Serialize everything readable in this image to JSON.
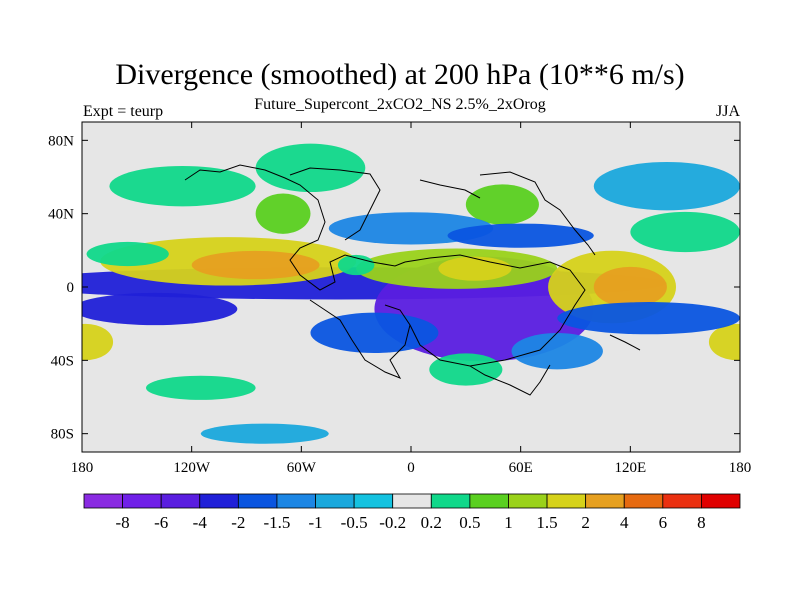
{
  "title": "Divergence (smoothed) at 200 hPa (10**6 m/s)",
  "subtitle": "Future_Supercont_2xCO2_NS 2.5%_2xOrog",
  "left_label": "Expt = teurp",
  "right_label": "JJA",
  "chart_data": {
    "type": "heatmap",
    "title": "Divergence (smoothed) at 200 hPa (10**6 m/s)",
    "subtitle": "Future_Supercont_2xCO2_NS 2.5%_2xOrog",
    "xlim": [
      -180,
      180
    ],
    "ylim": [
      -90,
      90
    ],
    "x_ticks": [
      {
        "value": -180,
        "label": "180"
      },
      {
        "value": -120,
        "label": "120W"
      },
      {
        "value": -60,
        "label": "60W"
      },
      {
        "value": 0,
        "label": "0"
      },
      {
        "value": 60,
        "label": "60E"
      },
      {
        "value": 120,
        "label": "120E"
      },
      {
        "value": 180,
        "label": "180"
      }
    ],
    "y_ticks": [
      {
        "value": 80,
        "label": "80N"
      },
      {
        "value": 40,
        "label": "40N"
      },
      {
        "value": 0,
        "label": "0"
      },
      {
        "value": -40,
        "label": "40S"
      },
      {
        "value": -80,
        "label": "80S"
      }
    ],
    "contour_levels": [
      -8,
      -6,
      -4,
      -2,
      -1.5,
      -1,
      -0.5,
      -0.2,
      0.2,
      0.5,
      1,
      1.5,
      2,
      4,
      6,
      8
    ],
    "colorbar_labels": [
      "-8",
      "-6",
      "-4",
      "-2",
      "-1.5",
      "-1",
      "-0.5",
      "-0.2",
      "0.2",
      "0.5",
      "1",
      "1.5",
      "2",
      "4",
      "6",
      "8"
    ],
    "colors": [
      "#8a2be2",
      "#7020e8",
      "#5a1ee0",
      "#2020d8",
      "#0a55e0",
      "#1c86e4",
      "#1aa8dc",
      "#14c2e0",
      "#e6e6e6",
      "#10d88a",
      "#5ad020",
      "#9ad21a",
      "#d6d21a",
      "#e6a020",
      "#e66a10",
      "#ea3010",
      "#e00000"
    ],
    "missing_color": "#ffffff",
    "features": [
      {
        "lon": -40,
        "lat": 2,
        "w": 360,
        "h": 8,
        "level": -3
      },
      {
        "lon": 40,
        "lat": -12,
        "w": 120,
        "h": 26,
        "level": -4
      },
      {
        "lon": -20,
        "lat": -25,
        "w": 70,
        "h": 10,
        "level": -1.5
      },
      {
        "lon": -100,
        "lat": 14,
        "w": 140,
        "h": 12,
        "level": 2
      },
      {
        "lon": -85,
        "lat": 12,
        "w": 70,
        "h": 7,
        "level": 4
      },
      {
        "lon": -155,
        "lat": 18,
        "w": 45,
        "h": 6,
        "level": 0.5
      },
      {
        "lon": 25,
        "lat": 10,
        "w": 110,
        "h": 10,
        "level": 1.5
      },
      {
        "lon": 35,
        "lat": 10,
        "w": 40,
        "h": 6,
        "level": 2
      },
      {
        "lon": 110,
        "lat": 0,
        "w": 70,
        "h": 18,
        "level": 2
      },
      {
        "lon": 120,
        "lat": 0,
        "w": 40,
        "h": 10,
        "level": 4
      },
      {
        "lon": -178,
        "lat": -30,
        "w": 30,
        "h": 9,
        "level": 2
      },
      {
        "lon": 178,
        "lat": -30,
        "w": 30,
        "h": 9,
        "level": 2
      },
      {
        "lon": -140,
        "lat": -12,
        "w": 90,
        "h": 8,
        "level": -2
      },
      {
        "lon": 130,
        "lat": -17,
        "w": 100,
        "h": 8,
        "level": -1.5
      },
      {
        "lon": 30,
        "lat": -45,
        "w": 40,
        "h": 8,
        "level": 0.5
      },
      {
        "lon": -125,
        "lat": 55,
        "w": 80,
        "h": 10,
        "level": 0.5
      },
      {
        "lon": -55,
        "lat": 65,
        "w": 60,
        "h": 12,
        "level": 0.5
      },
      {
        "lon": -70,
        "lat": 40,
        "w": 30,
        "h": 10,
        "level": 1
      },
      {
        "lon": 50,
        "lat": 45,
        "w": 40,
        "h": 10,
        "level": 1
      },
      {
        "lon": 0,
        "lat": 32,
        "w": 90,
        "h": 8,
        "level": -1
      },
      {
        "lon": 60,
        "lat": 28,
        "w": 80,
        "h": 6,
        "level": -1.5
      },
      {
        "lon": 140,
        "lat": 55,
        "w": 80,
        "h": 12,
        "level": -0.5
      },
      {
        "lon": -115,
        "lat": -55,
        "w": 60,
        "h": 6,
        "level": 0.5
      },
      {
        "lon": -80,
        "lat": -80,
        "w": 70,
        "h": 5,
        "level": -0.5
      },
      {
        "lon": 80,
        "lat": -35,
        "w": 50,
        "h": 9,
        "level": -1
      },
      {
        "lon": 150,
        "lat": 30,
        "w": 60,
        "h": 10,
        "level": 0.5
      },
      {
        "lon": -30,
        "lat": 12,
        "w": 20,
        "h": 5,
        "level": 0.5
      }
    ]
  }
}
